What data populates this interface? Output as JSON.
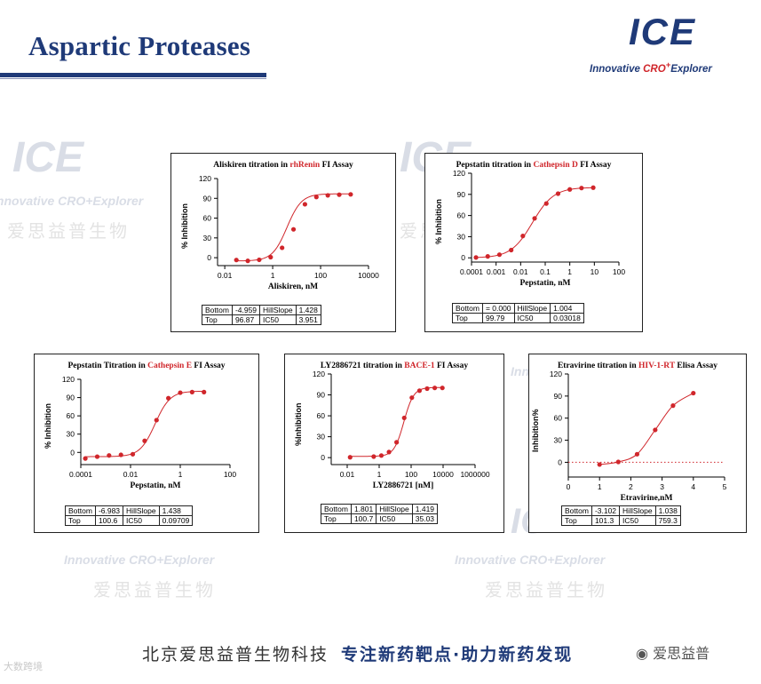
{
  "header": {
    "title": "Aspartic Proteases",
    "logo_text": "ICE",
    "logo_tagline_a": "Innovative ",
    "logo_tagline_b": "CRO",
    "logo_tagline_c": "+",
    "logo_tagline_d": "Explorer"
  },
  "watermark": {
    "brand": "Innovative CRO+Explorer",
    "cn": "爱思益普生物",
    "logo": "ICE"
  },
  "footer": {
    "company": "北京爱思益普生物科技",
    "slogan": "专注新药靶点·助力新药发现",
    "wechat": "爱思益普",
    "corner": "大数跨境"
  },
  "colors": {
    "accent": "#1f3a78",
    "curve": "#d0262b",
    "highlight": "#d0262b"
  },
  "chart_data": [
    {
      "type": "scatter",
      "title_pre": "Aliskiren titration in ",
      "title_target": "rhRenin",
      "title_post": " FI Assay",
      "xlabel": "Aliskiren, nM",
      "ylabel": "% Inhibition",
      "xscale": "log",
      "xlim": [
        0.005,
        10000
      ],
      "xticks": [
        0.01,
        1,
        100,
        10000
      ],
      "xticklabels": [
        "0.01",
        "1",
        "100",
        "10000"
      ],
      "ylim": [
        -12,
        120
      ],
      "yticks": [
        0,
        30,
        60,
        90,
        120
      ],
      "x": [
        0.0305,
        0.0914,
        0.274,
        0.823,
        2.47,
        7.41,
        22.2,
        66.7,
        200,
        600,
        1800
      ],
      "y": [
        -3.5,
        -4.8,
        -3.2,
        0.8,
        15,
        43,
        81,
        92,
        94.5,
        95.5,
        96
      ],
      "fit": {
        "bottom": -4.959,
        "top": 96.87,
        "hillslope": 1.428,
        "ic50": 3.951
      },
      "params": [
        [
          "Bottom",
          "-4.959",
          "HillSlope",
          "1.428"
        ],
        [
          "Top",
          "96.87",
          "IC50",
          "3.951"
        ]
      ]
    },
    {
      "type": "scatter",
      "title_pre": "Pepstatin titration in ",
      "title_target": "Cathepsin D",
      "title_post": " FI Assay",
      "xlabel": "Pepstatin, nM",
      "ylabel": "% Inhibition",
      "xscale": "log",
      "xlim": [
        0.0001,
        100
      ],
      "xticks": [
        0.0001,
        0.001,
        0.01,
        0.1,
        1,
        10,
        100
      ],
      "xticklabels": [
        "0.0001",
        "0.001",
        "0.01",
        "0.1",
        "1",
        "10",
        "100"
      ],
      "ylim": [
        -6,
        120
      ],
      "yticks": [
        0,
        30,
        60,
        90,
        120
      ],
      "x": [
        0.000152,
        0.000457,
        0.00137,
        0.00412,
        0.0123,
        0.037,
        0.111,
        0.333,
        1,
        3,
        9
      ],
      "y": [
        0.5,
        2,
        4.5,
        11,
        31,
        56,
        77,
        91,
        97,
        99,
        99.5
      ],
      "fit": {
        "bottom": 0.0,
        "top": 99.79,
        "hillslope": 1.004,
        "ic50": 0.03018
      },
      "params": [
        [
          "Bottom",
          "= 0.000",
          "HillSlope",
          "1.004"
        ],
        [
          "Top",
          "99.79",
          "IC50",
          "0.03018"
        ]
      ]
    },
    {
      "type": "scatter",
      "title_pre": "Pepstatin Titration in ",
      "title_target": "Cathepsin E",
      "title_post": " FI Assay",
      "xlabel": "Pepstatin, nM",
      "ylabel": "% Inhibition",
      "xscale": "log",
      "xlim": [
        0.0001,
        100
      ],
      "xticks": [
        0.0001,
        0.01,
        1,
        100
      ],
      "xticklabels": [
        "0.0001",
        "0.01",
        "1",
        "100"
      ],
      "ylim": [
        -20,
        120
      ],
      "yticks": [
        0,
        30,
        60,
        90,
        120
      ],
      "x": [
        0.000152,
        0.000457,
        0.00137,
        0.00412,
        0.0123,
        0.037,
        0.111,
        0.333,
        1,
        3,
        9
      ],
      "y": [
        -10,
        -7,
        -5,
        -4,
        -3,
        19,
        53,
        89,
        98,
        99,
        99
      ],
      "fit": {
        "bottom": -6.983,
        "top": 100.6,
        "hillslope": 1.438,
        "ic50": 0.09709
      },
      "params": [
        [
          "Bottom",
          "-6.983",
          "HillSlope",
          "1.438"
        ],
        [
          "Top",
          "100.6",
          "IC50",
          "0.09709"
        ]
      ]
    },
    {
      "type": "scatter",
      "title_pre": "LY2886721 titration in ",
      "title_target": "BACE-1",
      "title_post": " FI Assay",
      "xlabel": "LY2886721 [nM]",
      "ylabel": "%Inhibition",
      "xscale": "log",
      "xlim": [
        0.001,
        1000000
      ],
      "xticks": [
        0.01,
        1,
        100,
        10000,
        1000000
      ],
      "xticklabels": [
        "0.01",
        "1",
        "100",
        "10000",
        "1000000"
      ],
      "ylim": [
        -10,
        120
      ],
      "yticks": [
        0,
        30,
        60,
        90,
        120
      ],
      "x": [
        0.0152,
        0.457,
        1.37,
        4.12,
        12.3,
        37,
        111,
        333,
        1000,
        3000,
        9000
      ],
      "y": [
        0.5,
        1.5,
        3,
        8,
        22,
        57,
        86,
        96,
        99,
        100,
        100
      ],
      "fit": {
        "bottom": 1.801,
        "top": 100.7,
        "hillslope": 1.419,
        "ic50": 35.03
      },
      "params": [
        [
          "Bottom",
          "1.801",
          "HillSlope",
          "1.419"
        ],
        [
          "Top",
          "100.7",
          "IC50",
          "35.03"
        ]
      ]
    },
    {
      "type": "scatter",
      "title_pre": "Etravirine titration in ",
      "title_target": "HIV-1-RT",
      "title_post": " Elisa Assay",
      "xlabel": "Etravirine,nM",
      "ylabel": "Inhibition%",
      "xscale": "linear",
      "xlim": [
        0,
        5
      ],
      "xticks": [
        0,
        1,
        2,
        3,
        4,
        5
      ],
      "xticklabels": [
        "0",
        "1",
        "2",
        "3",
        "4",
        "5"
      ],
      "ylim": [
        -20,
        120
      ],
      "yticks": [
        0,
        30,
        60,
        90,
        120
      ],
      "x": [
        1.0,
        1.6,
        2.2,
        2.78,
        3.35,
        4.0
      ],
      "y": [
        -3,
        0.5,
        11,
        44,
        77,
        94
      ],
      "fit": {
        "bottom": -3.102,
        "top": 101.3,
        "hillslope": 1.038,
        "ic50": 759.3
      },
      "params": [
        [
          "Bottom",
          "-3.102",
          "HillSlope",
          "1.038"
        ],
        [
          "Top",
          "101.3",
          "IC50",
          "759.3"
        ]
      ]
    }
  ]
}
